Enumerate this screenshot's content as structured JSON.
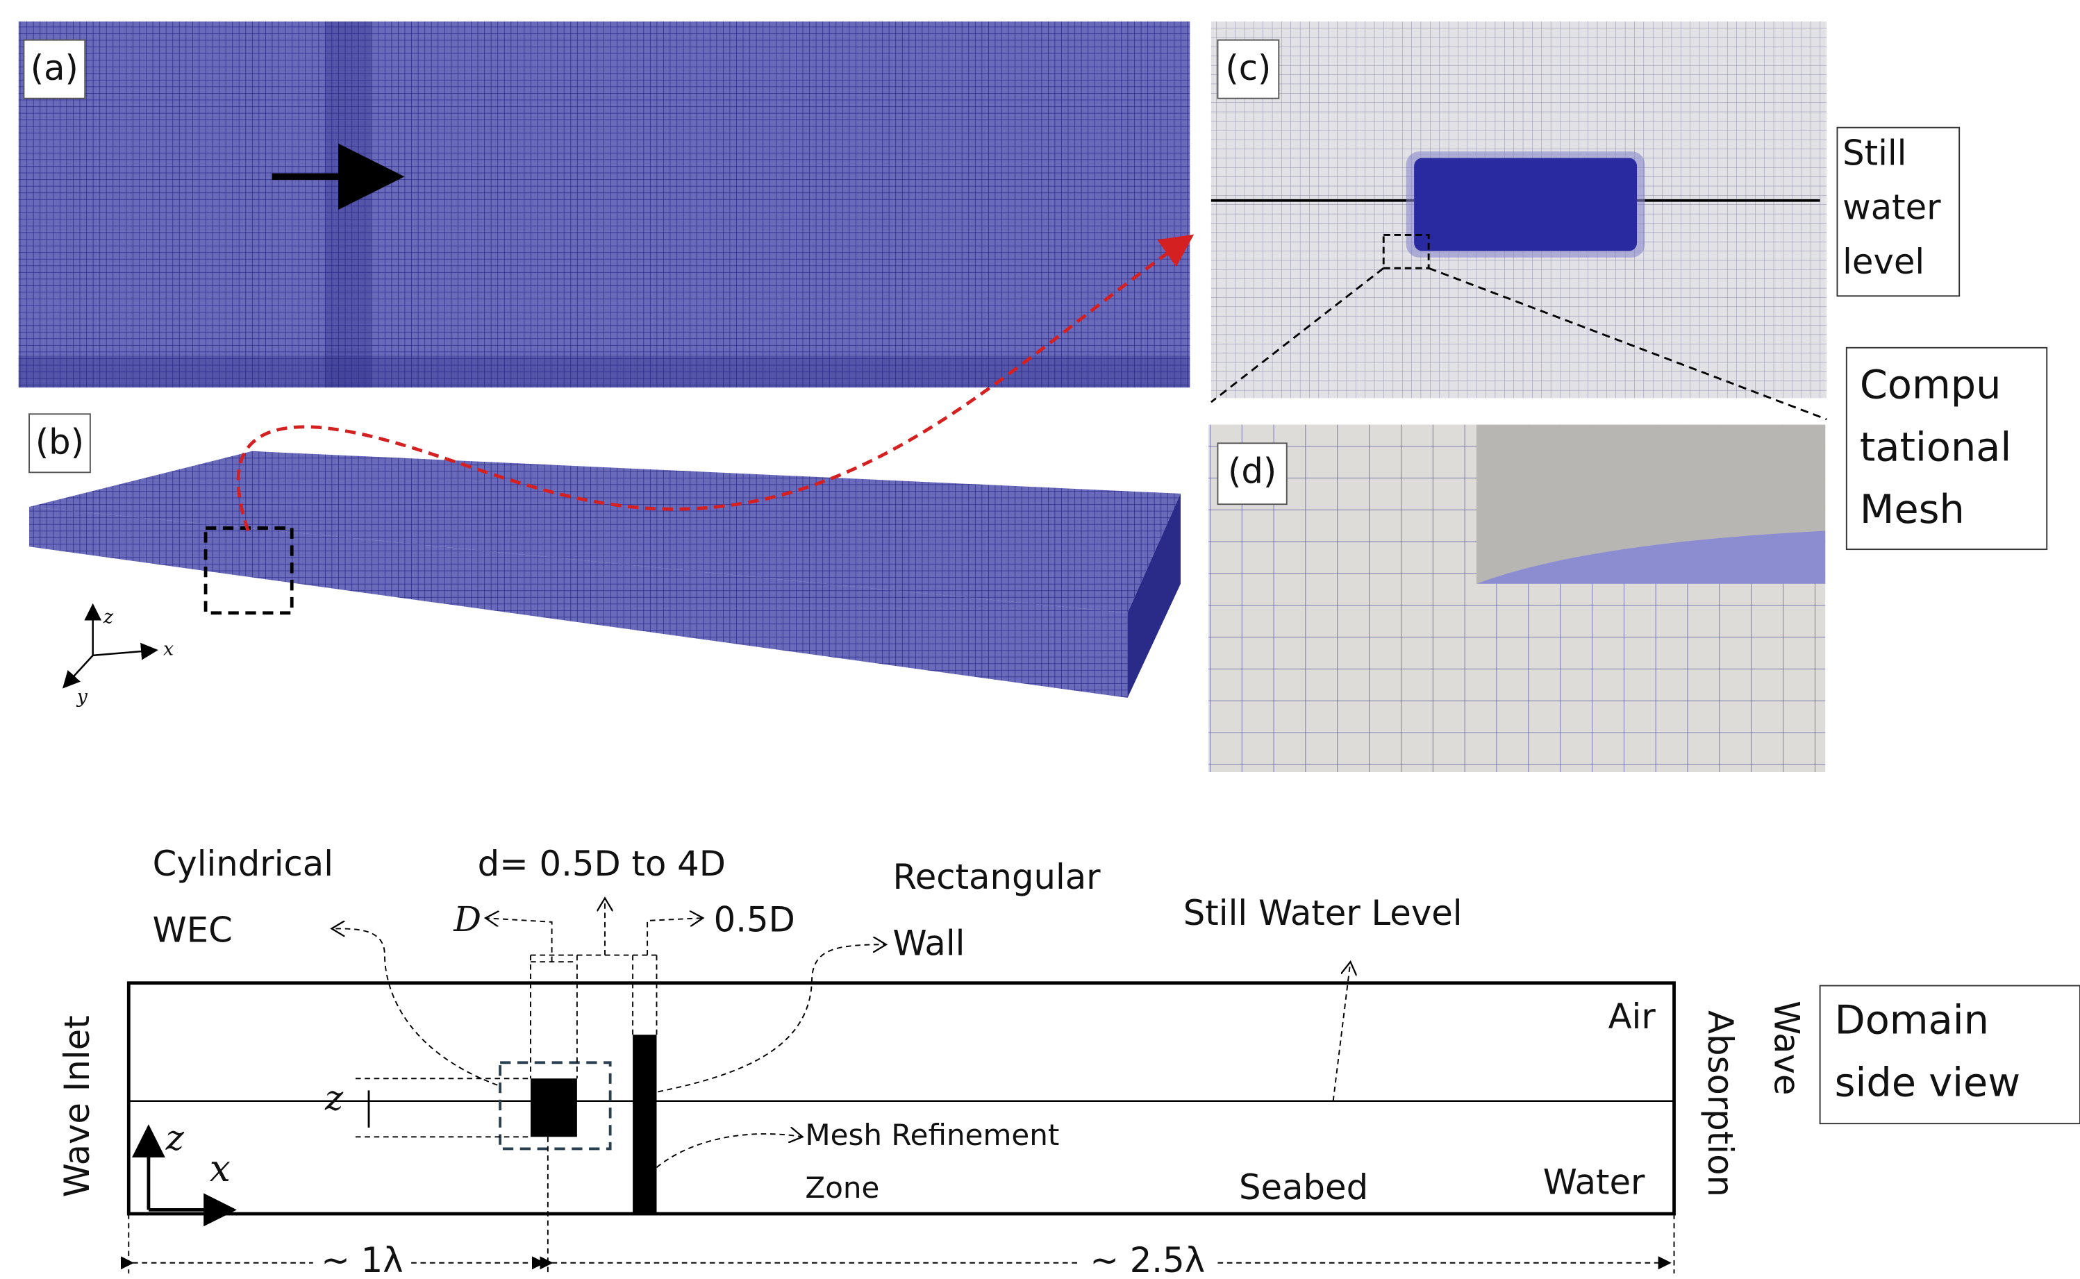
{
  "panels": {
    "a": {
      "label": "(a)"
    },
    "b": {
      "label": "(b)",
      "axes": [
        "z",
        "x",
        "y"
      ]
    },
    "c": {
      "label": "(c)",
      "still_water_level": [
        "Still",
        "water",
        "level"
      ]
    },
    "d": {
      "label": "(d)"
    }
  },
  "mesh_caption": [
    "Compu",
    "tational",
    "Mesh"
  ],
  "side_view": {
    "caption": [
      "Domain",
      "side view"
    ],
    "labels": {
      "cylindrical_wec": [
        "Cylindrical",
        "WEC"
      ],
      "spacing": "d= 0.5D to 4D",
      "diameter": "D",
      "wall_thickness": "0.5D",
      "rectangular_wall": [
        "Rectangular",
        "Wall"
      ],
      "still_water_level": "Still Water Level",
      "air": "Air",
      "water": "Water",
      "seabed": "Seabed",
      "wave_inlet": "Wave Inlet",
      "wave_absorption": [
        "Wave",
        "Absorption"
      ],
      "draft": "z",
      "axis_z": "z",
      "axis_x": "x",
      "mesh_refinement": [
        "Mesh Refinement",
        "Zone"
      ],
      "distance_inlet": "~ 1λ",
      "distance_outlet": "~ 2.5λ"
    }
  }
}
